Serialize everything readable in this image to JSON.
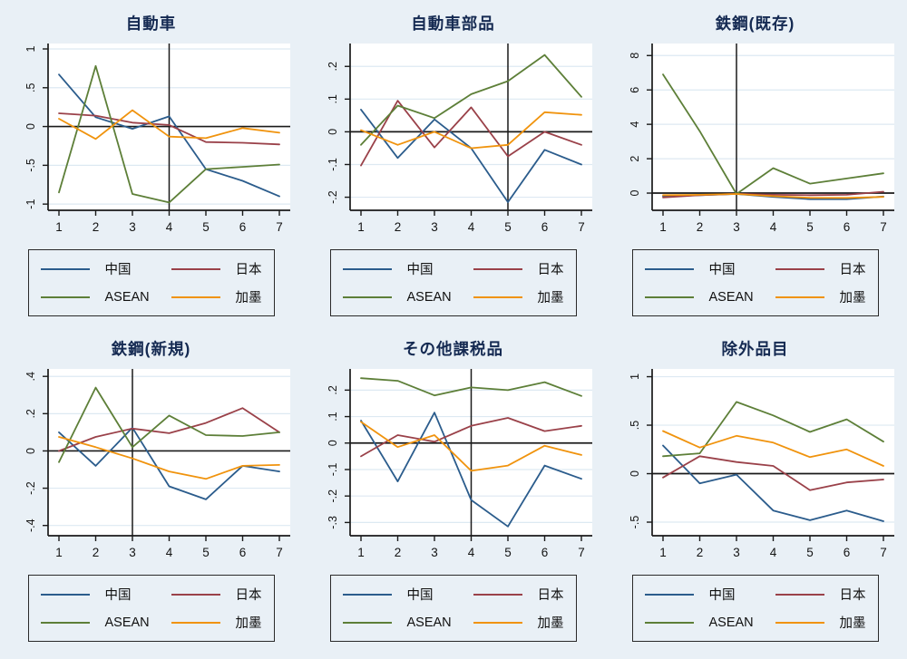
{
  "page": {
    "background": "#e9f0f6",
    "plot_background": "#ffffff",
    "gridline_color": "#dde9f2",
    "axis_color": "#1a1a1a",
    "title_color": "#152a52"
  },
  "series_colors": {
    "china": "#2b5c8c",
    "japan": "#9a4149",
    "asean": "#5d7f38",
    "canada_mexico": "#f0930d"
  },
  "legend": {
    "position": "below-each-panel",
    "entries": [
      {
        "label": "中国",
        "color_key": "china"
      },
      {
        "label": "日本",
        "color_key": "japan"
      },
      {
        "label": "ASEAN",
        "color_key": "asean"
      },
      {
        "label": "加墨",
        "color_key": "canada_mexico"
      }
    ]
  },
  "chart_data": [
    {
      "type": "line",
      "title": "自動車",
      "x": [
        1,
        2,
        3,
        4,
        5,
        6,
        7
      ],
      "xtick_labels": [
        "1",
        "2",
        "3",
        "4",
        "5",
        "6",
        "7"
      ],
      "xline": 4,
      "yline": 0,
      "yticks": [
        -1,
        -0.5,
        0,
        0.5,
        1
      ],
      "ytick_labels": [
        "-1",
        "-.5",
        "0",
        ".5",
        "1"
      ],
      "ylim": [
        -1.08,
        1.07
      ],
      "grid": true,
      "series": [
        {
          "name": "中国",
          "color_key": "china",
          "values": [
            0.67,
            0.12,
            -0.03,
            0.13,
            -0.55,
            -0.7,
            -0.9
          ]
        },
        {
          "name": "日本",
          "color_key": "japan",
          "values": [
            0.17,
            0.14,
            0.05,
            0.02,
            -0.2,
            -0.21,
            -0.23
          ]
        },
        {
          "name": "ASEAN",
          "color_key": "asean",
          "values": [
            -0.85,
            0.78,
            -0.87,
            -0.98,
            -0.55,
            -0.52,
            -0.49
          ]
        },
        {
          "name": "加墨",
          "color_key": "canada_mexico",
          "values": [
            0.1,
            -0.16,
            0.21,
            -0.13,
            -0.15,
            -0.02,
            -0.08
          ]
        }
      ]
    },
    {
      "type": "line",
      "title": "自動車部品",
      "x": [
        1,
        2,
        3,
        4,
        5,
        6,
        7
      ],
      "xtick_labels": [
        "1",
        "2",
        "3",
        "4",
        "5",
        "6",
        "7"
      ],
      "xline": 5,
      "yline": 0,
      "yticks": [
        -0.2,
        -0.1,
        0,
        0.1,
        0.2
      ],
      "ytick_labels": [
        "-.2",
        "-.1",
        "0",
        ".1",
        ".2"
      ],
      "ylim": [
        -0.24,
        0.27
      ],
      "grid": true,
      "series": [
        {
          "name": "中国",
          "color_key": "china",
          "values": [
            0.068,
            -0.08,
            0.038,
            -0.05,
            -0.215,
            -0.055,
            -0.1
          ]
        },
        {
          "name": "日本",
          "color_key": "japan",
          "values": [
            -0.103,
            0.095,
            -0.048,
            0.075,
            -0.075,
            0.0,
            -0.04
          ]
        },
        {
          "name": "ASEAN",
          "color_key": "asean",
          "values": [
            -0.04,
            0.08,
            0.042,
            0.115,
            0.155,
            0.235,
            0.107
          ]
        },
        {
          "name": "加墨",
          "color_key": "canada_mexico",
          "values": [
            0.005,
            -0.04,
            0.0,
            -0.05,
            -0.04,
            0.06,
            0.052
          ]
        }
      ]
    },
    {
      "type": "line",
      "title": "鉄鋼(既存)",
      "x": [
        1,
        2,
        3,
        4,
        5,
        6,
        7
      ],
      "xtick_labels": [
        "1",
        "2",
        "3",
        "4",
        "5",
        "6",
        "7"
      ],
      "xline": 3,
      "yline": 0,
      "yticks": [
        0,
        2,
        4,
        6,
        8
      ],
      "ytick_labels": [
        "0",
        "2",
        "4",
        "6",
        "8"
      ],
      "ylim": [
        -1.0,
        8.7
      ],
      "grid": true,
      "series": [
        {
          "name": "中国",
          "color_key": "china",
          "values": [
            -0.18,
            -0.12,
            -0.05,
            -0.22,
            -0.35,
            -0.35,
            -0.2
          ]
        },
        {
          "name": "日本",
          "color_key": "japan",
          "values": [
            -0.25,
            -0.12,
            -0.04,
            -0.1,
            -0.12,
            -0.1,
            0.08
          ]
        },
        {
          "name": "ASEAN",
          "color_key": "asean",
          "values": [
            6.9,
            3.6,
            -0.05,
            1.45,
            0.55,
            0.85,
            1.15
          ]
        },
        {
          "name": "加墨",
          "color_key": "canada_mexico",
          "values": [
            -0.12,
            -0.1,
            -0.05,
            -0.18,
            -0.27,
            -0.28,
            -0.22
          ]
        }
      ]
    },
    {
      "type": "line",
      "title": "鉄鋼(新規)",
      "x": [
        1,
        2,
        3,
        4,
        5,
        6,
        7
      ],
      "xtick_labels": [
        "1",
        "2",
        "3",
        "4",
        "5",
        "6",
        "7"
      ],
      "xline": 3,
      "yline": 0,
      "yticks": [
        -0.4,
        -0.2,
        0,
        0.2,
        0.4
      ],
      "ytick_labels": [
        "-.4",
        "-.2",
        "0",
        ".2",
        ".4"
      ],
      "ylim": [
        -0.455,
        0.44
      ],
      "grid": true,
      "series": [
        {
          "name": "中国",
          "color_key": "china",
          "values": [
            0.1,
            -0.08,
            0.125,
            -0.19,
            -0.26,
            -0.08,
            -0.11
          ]
        },
        {
          "name": "日本",
          "color_key": "japan",
          "values": [
            0.0,
            0.075,
            0.12,
            0.095,
            0.15,
            0.23,
            0.1
          ]
        },
        {
          "name": "ASEAN",
          "color_key": "asean",
          "values": [
            -0.06,
            0.34,
            0.02,
            0.19,
            0.085,
            0.08,
            0.1
          ]
        },
        {
          "name": "加墨",
          "color_key": "canada_mexico",
          "values": [
            0.075,
            0.02,
            -0.04,
            -0.11,
            -0.15,
            -0.08,
            -0.075
          ]
        }
      ]
    },
    {
      "type": "line",
      "title": "その他課税品",
      "x": [
        1,
        2,
        3,
        4,
        5,
        6,
        7
      ],
      "xtick_labels": [
        "1",
        "2",
        "3",
        "4",
        "5",
        "6",
        "7"
      ],
      "xline": 4,
      "yline": 0,
      "yticks": [
        -0.3,
        -0.2,
        -0.1,
        0,
        0.1,
        0.2
      ],
      "ytick_labels": [
        "-.3",
        "-.2",
        "-.1",
        "0",
        ".1",
        ".2"
      ],
      "ylim": [
        -0.35,
        0.28
      ],
      "grid": true,
      "series": [
        {
          "name": "中国",
          "color_key": "china",
          "values": [
            0.085,
            -0.145,
            0.115,
            -0.215,
            -0.315,
            -0.085,
            -0.135
          ]
        },
        {
          "name": "日本",
          "color_key": "japan",
          "values": [
            -0.05,
            0.03,
            0.005,
            0.065,
            0.095,
            0.045,
            0.065
          ]
        },
        {
          "name": "ASEAN",
          "color_key": "asean",
          "values": [
            0.245,
            0.235,
            0.18,
            0.21,
            0.2,
            0.23,
            0.178
          ]
        },
        {
          "name": "加墨",
          "color_key": "canada_mexico",
          "values": [
            0.08,
            -0.015,
            0.03,
            -0.105,
            -0.085,
            -0.01,
            -0.045
          ]
        }
      ]
    },
    {
      "type": "line",
      "title": "除外品目",
      "x": [
        1,
        2,
        3,
        4,
        5,
        6,
        7
      ],
      "xtick_labels": [
        "1",
        "2",
        "3",
        "4",
        "5",
        "6",
        "7"
      ],
      "xline": null,
      "yline": 0,
      "yticks": [
        -0.5,
        0,
        0.5,
        1
      ],
      "ytick_labels": [
        "-.5",
        "0",
        ".5",
        "1"
      ],
      "ylim": [
        -0.64,
        1.08
      ],
      "grid": true,
      "series": [
        {
          "name": "中国",
          "color_key": "china",
          "values": [
            0.29,
            -0.1,
            -0.01,
            -0.38,
            -0.48,
            -0.38,
            -0.49
          ]
        },
        {
          "name": "日本",
          "color_key": "japan",
          "values": [
            -0.04,
            0.18,
            0.12,
            0.08,
            -0.17,
            -0.09,
            -0.06
          ]
        },
        {
          "name": "ASEAN",
          "color_key": "asean",
          "values": [
            0.18,
            0.21,
            0.74,
            0.6,
            0.43,
            0.56,
            0.33
          ]
        },
        {
          "name": "加墨",
          "color_key": "canada_mexico",
          "values": [
            0.44,
            0.27,
            0.39,
            0.32,
            0.17,
            0.25,
            0.08
          ]
        }
      ]
    }
  ]
}
